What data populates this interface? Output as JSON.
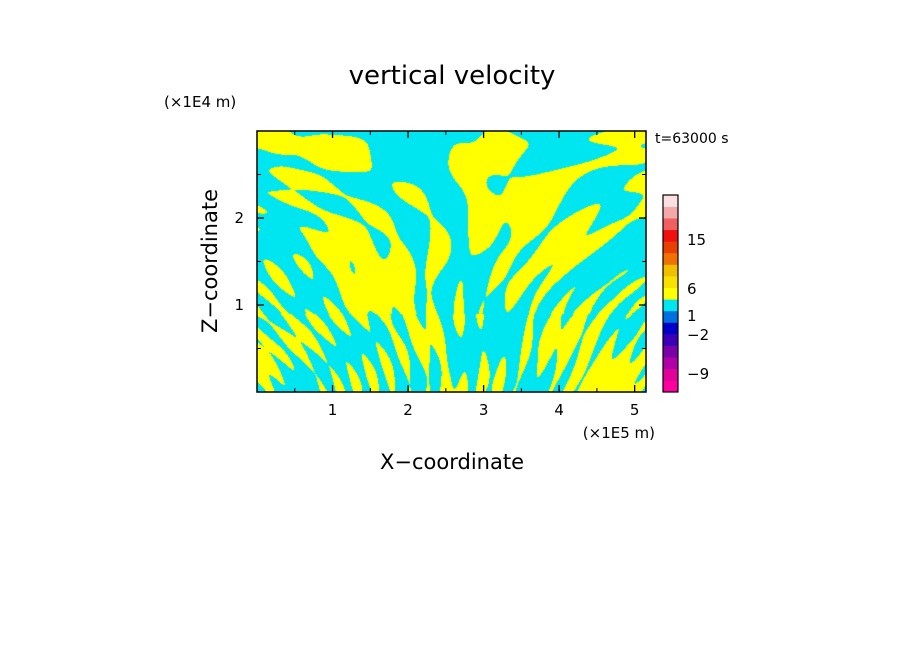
{
  "chart_data": {
    "type": "heatmap",
    "title": "vertical velocity",
    "xlabel": "X−coordinate",
    "ylabel": "Z−coordinate",
    "x_unit": "(×1E5 m)",
    "y_unit": "(×1E4 m)",
    "time_label": "t=63000 s",
    "xlim": [
      0,
      5.15
    ],
    "ylim": [
      0,
      3.0
    ],
    "xticks": [
      {
        "value": 1,
        "label": "1"
      },
      {
        "value": 2,
        "label": "2"
      },
      {
        "value": 3,
        "label": "3"
      },
      {
        "value": 4,
        "label": "4"
      },
      {
        "value": 5,
        "label": "5"
      }
    ],
    "yticks": [
      {
        "value": 1,
        "label": "1"
      },
      {
        "value": 2,
        "label": "2"
      }
    ],
    "field_colors": {
      "positive": "#ffff00",
      "negative": "#00e6f0"
    },
    "colorbar": {
      "levels": [
        {
          "color": "#ff00a0"
        },
        {
          "color": "#e0009a"
        },
        {
          "color": "#b000a8"
        },
        {
          "color": "#7a00a8"
        },
        {
          "color": "#3a00b8"
        },
        {
          "color": "#0000c8"
        },
        {
          "color": "#0070e0"
        },
        {
          "color": "#00e6f0"
        },
        {
          "color": "#ffff00"
        },
        {
          "color": "#f8e000"
        },
        {
          "color": "#f0c000"
        },
        {
          "color": "#f07000"
        },
        {
          "color": "#e84000"
        },
        {
          "color": "#f01010"
        },
        {
          "color": "#f06060"
        },
        {
          "color": "#f4a8a8"
        },
        {
          "color": "#fae0e0"
        }
      ],
      "labels": [
        {
          "value": 15,
          "label": "15"
        },
        {
          "value": 6,
          "label": "6"
        },
        {
          "value": 1,
          "label": "1"
        },
        {
          "value": -2,
          "label": "−2"
        },
        {
          "value": -9,
          "label": "−9"
        }
      ]
    }
  }
}
